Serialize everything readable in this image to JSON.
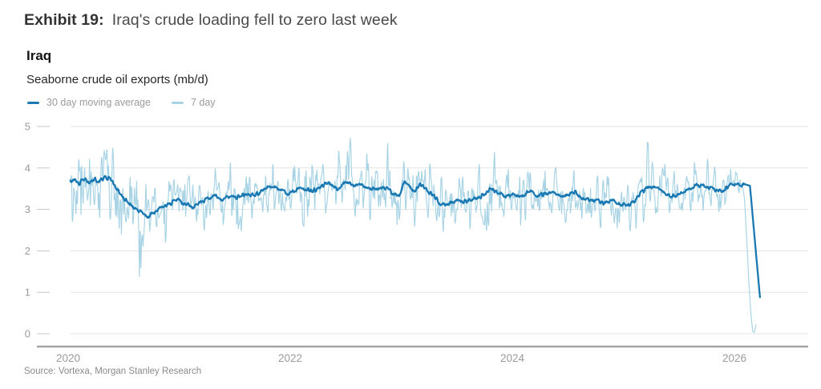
{
  "page": {
    "exhibit_label": "Exhibit 19:",
    "exhibit_title": "Iraq's crude loading fell to zero last week",
    "source": "Source: Vortexa, Morgan Stanley Research"
  },
  "chart_data": {
    "type": "line",
    "title": "Iraq",
    "subtitle": "Seaborne crude oil exports (mb/d)",
    "unit": "mb/d",
    "xlim": [
      2019.72,
      2026.66
    ],
    "ylim": [
      0,
      5
    ],
    "x_ticks": [
      2020,
      2022,
      2024,
      2026
    ],
    "y_ticks": [
      0,
      1,
      2,
      3,
      4,
      5
    ],
    "grid": "horizontal",
    "legend_position": "top-left",
    "annotation": "7-day loadings fall to zero at the end of the series (last week); 30-day moving average plunges from ~3.6 to ~0.9",
    "colors": {
      "grid": "#e3e3e3",
      "tick_stub": "#c7c7c7",
      "axis_line": "#a3a3a3",
      "tick_label": "#9b9b9b"
    },
    "series": [
      {
        "name": "30 day moving average",
        "color": "#1a79b2",
        "stroke_width": 2.3,
        "keypoints": [
          [
            2020.02,
            3.68
          ],
          [
            2020.06,
            3.73
          ],
          [
            2020.1,
            3.62
          ],
          [
            2020.15,
            3.76
          ],
          [
            2020.19,
            3.66
          ],
          [
            2020.24,
            3.73
          ],
          [
            2020.28,
            3.67
          ],
          [
            2020.33,
            3.78
          ],
          [
            2020.38,
            3.73
          ],
          [
            2020.43,
            3.52
          ],
          [
            2020.5,
            3.26
          ],
          [
            2020.58,
            3.08
          ],
          [
            2020.65,
            2.95
          ],
          [
            2020.72,
            2.84
          ],
          [
            2020.78,
            2.93
          ],
          [
            2020.85,
            3.06
          ],
          [
            2020.92,
            3.15
          ],
          [
            2020.99,
            3.22
          ],
          [
            2021.06,
            3.12
          ],
          [
            2021.13,
            3.06
          ],
          [
            2021.2,
            3.18
          ],
          [
            2021.27,
            3.28
          ],
          [
            2021.32,
            3.36
          ],
          [
            2021.38,
            3.22
          ],
          [
            2021.45,
            3.32
          ],
          [
            2021.52,
            3.27
          ],
          [
            2021.6,
            3.38
          ],
          [
            2021.68,
            3.33
          ],
          [
            2021.76,
            3.46
          ],
          [
            2021.84,
            3.56
          ],
          [
            2021.9,
            3.47
          ],
          [
            2021.97,
            3.38
          ],
          [
            2022.05,
            3.46
          ],
          [
            2022.12,
            3.51
          ],
          [
            2022.2,
            3.43
          ],
          [
            2022.28,
            3.56
          ],
          [
            2022.35,
            3.67
          ],
          [
            2022.42,
            3.47
          ],
          [
            2022.5,
            3.67
          ],
          [
            2022.57,
            3.54
          ],
          [
            2022.63,
            3.61
          ],
          [
            2022.72,
            3.51
          ],
          [
            2022.8,
            3.47
          ],
          [
            2022.87,
            3.54
          ],
          [
            2022.93,
            3.32
          ],
          [
            2022.98,
            3.36
          ],
          [
            2023.03,
            3.67
          ],
          [
            2023.08,
            3.54
          ],
          [
            2023.13,
            3.46
          ],
          [
            2023.17,
            3.61
          ],
          [
            2023.24,
            3.44
          ],
          [
            2023.3,
            3.31
          ],
          [
            2023.36,
            3.12
          ],
          [
            2023.43,
            3.16
          ],
          [
            2023.5,
            3.22
          ],
          [
            2023.58,
            3.2
          ],
          [
            2023.65,
            3.25
          ],
          [
            2023.72,
            3.31
          ],
          [
            2023.8,
            3.51
          ],
          [
            2023.87,
            3.42
          ],
          [
            2023.94,
            3.34
          ],
          [
            2024.01,
            3.38
          ],
          [
            2024.08,
            3.31
          ],
          [
            2024.16,
            3.47
          ],
          [
            2024.22,
            3.32
          ],
          [
            2024.3,
            3.38
          ],
          [
            2024.37,
            3.42
          ],
          [
            2024.44,
            3.3
          ],
          [
            2024.51,
            3.38
          ],
          [
            2024.56,
            3.44
          ],
          [
            2024.63,
            3.26
          ],
          [
            2024.71,
            3.22
          ],
          [
            2024.78,
            3.2
          ],
          [
            2024.85,
            3.15
          ],
          [
            2024.89,
            3.25
          ],
          [
            2024.97,
            3.1
          ],
          [
            2025.04,
            3.1
          ],
          [
            2025.1,
            3.18
          ],
          [
            2025.16,
            3.42
          ],
          [
            2025.22,
            3.5
          ],
          [
            2025.28,
            3.55
          ],
          [
            2025.33,
            3.48
          ],
          [
            2025.38,
            3.38
          ],
          [
            2025.45,
            3.31
          ],
          [
            2025.52,
            3.38
          ],
          [
            2025.58,
            3.5
          ],
          [
            2025.65,
            3.55
          ],
          [
            2025.72,
            3.58
          ],
          [
            2025.8,
            3.5
          ],
          [
            2025.88,
            3.43
          ],
          [
            2025.95,
            3.56
          ],
          [
            2026.02,
            3.63
          ],
          [
            2026.06,
            3.55
          ],
          [
            2026.1,
            3.6
          ],
          [
            2026.14,
            3.57
          ],
          [
            2026.23,
            0.88
          ]
        ]
      },
      {
        "name": "7 day",
        "color": "#a7d3e4",
        "stroke_width": 1.15,
        "basis": "oscillates around the 30 day moving average keypoints",
        "value_range_observed": [
          0.03,
          4.8
        ],
        "noise_seed": 7,
        "noise_amplitude_keypoints": [
          [
            2020.02,
            0.82
          ],
          [
            2020.4,
            0.78
          ],
          [
            2020.6,
            0.6
          ],
          [
            2020.9,
            0.5
          ],
          [
            2021.5,
            0.46
          ],
          [
            2022.3,
            0.52
          ],
          [
            2022.95,
            0.56
          ],
          [
            2023.4,
            0.52
          ],
          [
            2024.0,
            0.48
          ],
          [
            2024.8,
            0.5
          ],
          [
            2025.4,
            0.48
          ],
          [
            2025.95,
            0.45
          ],
          [
            2026.04,
            0.3
          ],
          [
            2026.06,
            0.12
          ]
        ],
        "tail_keypoints": [
          [
            2026.07,
            3.6
          ],
          [
            2026.09,
            3.28
          ],
          [
            2026.11,
            2.35
          ],
          [
            2026.13,
            1.25
          ],
          [
            2026.15,
            0.42
          ],
          [
            2026.165,
            0.05
          ],
          [
            2026.18,
            0.03
          ],
          [
            2026.195,
            0.22
          ]
        ]
      }
    ]
  }
}
